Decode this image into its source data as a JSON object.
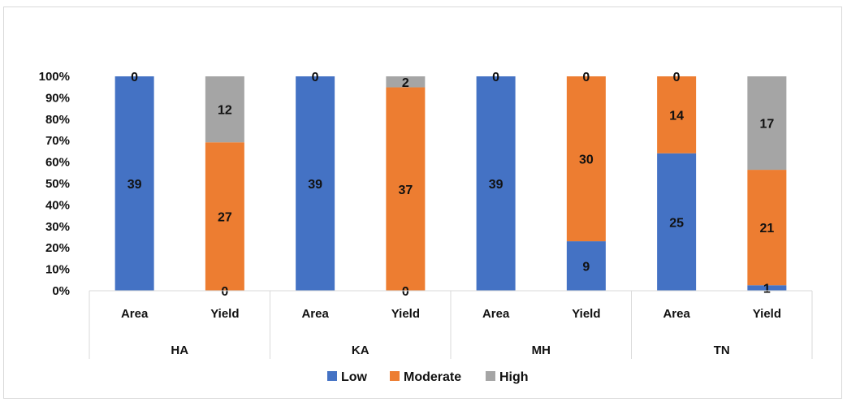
{
  "chart_data": {
    "type": "bar",
    "stacked": "percent",
    "groups": [
      "HA",
      "KA",
      "MH",
      "TN"
    ],
    "categories": [
      "Area",
      "Yield",
      "Area",
      "Yield",
      "Area",
      "Yield",
      "Area",
      "Yield"
    ],
    "group_of_category": [
      "HA",
      "HA",
      "KA",
      "KA",
      "MH",
      "MH",
      "TN",
      "TN"
    ],
    "series": [
      {
        "name": "Low",
        "color": "#4472C4",
        "values": [
          39,
          0,
          39,
          0,
          39,
          9,
          25,
          1
        ]
      },
      {
        "name": "Moderate",
        "color": "#ED7D31",
        "values": [
          0,
          27,
          0,
          37,
          0,
          30,
          14,
          21
        ]
      },
      {
        "name": "High",
        "color": "#A5A5A5",
        "values": [
          0,
          12,
          0,
          2,
          0,
          0,
          0,
          17
        ]
      }
    ],
    "y_ticks": [
      "0%",
      "10%",
      "20%",
      "30%",
      "40%",
      "50%",
      "60%",
      "70%",
      "80%",
      "90%",
      "100%"
    ],
    "ylim": [
      0,
      100
    ],
    "grid": false,
    "legend": "bottom",
    "visible_labels": [
      {
        "cat": 0,
        "series": 0,
        "text": "39"
      },
      {
        "cat": 0,
        "series": 1,
        "text": "0"
      },
      {
        "cat": 1,
        "series": 0,
        "text": "0"
      },
      {
        "cat": 1,
        "series": 1,
        "text": "27"
      },
      {
        "cat": 1,
        "series": 2,
        "text": "12"
      },
      {
        "cat": 2,
        "series": 0,
        "text": "39"
      },
      {
        "cat": 2,
        "series": 1,
        "text": "0"
      },
      {
        "cat": 3,
        "series": 0,
        "text": "0"
      },
      {
        "cat": 3,
        "series": 1,
        "text": "37"
      },
      {
        "cat": 3,
        "series": 2,
        "text": "2"
      },
      {
        "cat": 4,
        "series": 0,
        "text": "39"
      },
      {
        "cat": 4,
        "series": 1,
        "text": "0"
      },
      {
        "cat": 5,
        "series": 0,
        "text": "9"
      },
      {
        "cat": 5,
        "series": 1,
        "text": "30"
      },
      {
        "cat": 5,
        "series": 2,
        "text": "0"
      },
      {
        "cat": 6,
        "series": 0,
        "text": "25"
      },
      {
        "cat": 6,
        "series": 1,
        "text": "14"
      },
      {
        "cat": 6,
        "series": 2,
        "text": "0"
      },
      {
        "cat": 7,
        "series": 0,
        "text": "1"
      },
      {
        "cat": 7,
        "series": 1,
        "text": "21"
      },
      {
        "cat": 7,
        "series": 2,
        "text": "17"
      }
    ]
  }
}
